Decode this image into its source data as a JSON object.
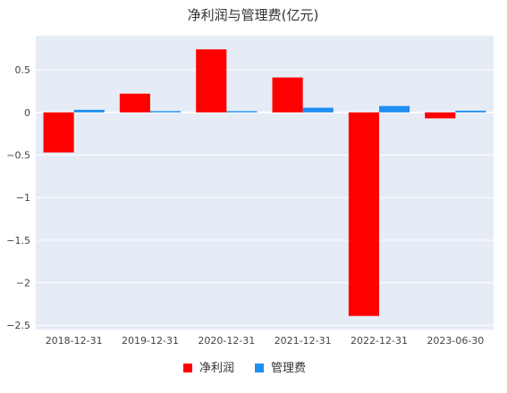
{
  "chart_data": {
    "type": "bar",
    "title": "净利润与管理费(亿元)",
    "xlabel": "",
    "ylabel": "",
    "categories": [
      "2018-12-31",
      "2019-12-31",
      "2020-12-31",
      "2021-12-31",
      "2022-12-31",
      "2023-06-30"
    ],
    "series": [
      {
        "name": "净利润",
        "color": "#ff0000",
        "values": [
          -0.47,
          0.22,
          0.74,
          0.41,
          -2.39,
          -0.07
        ]
      },
      {
        "name": "管理费",
        "color": "#1f8ef1",
        "values": [
          0.03,
          0.015,
          0.015,
          0.055,
          0.075,
          0.02
        ]
      }
    ],
    "ylim": [
      -2.55,
      0.9
    ],
    "yticks": [
      0.5,
      0,
      -0.5,
      -1,
      -1.5,
      -2,
      -2.5
    ],
    "ytick_labels": [
      "0.5",
      "0",
      "−0.5",
      "−1",
      "−1.5",
      "−2",
      "−2.5"
    ],
    "grid": true,
    "legend_position": "bottom-center",
    "plot_background": "#e5ecf6"
  }
}
